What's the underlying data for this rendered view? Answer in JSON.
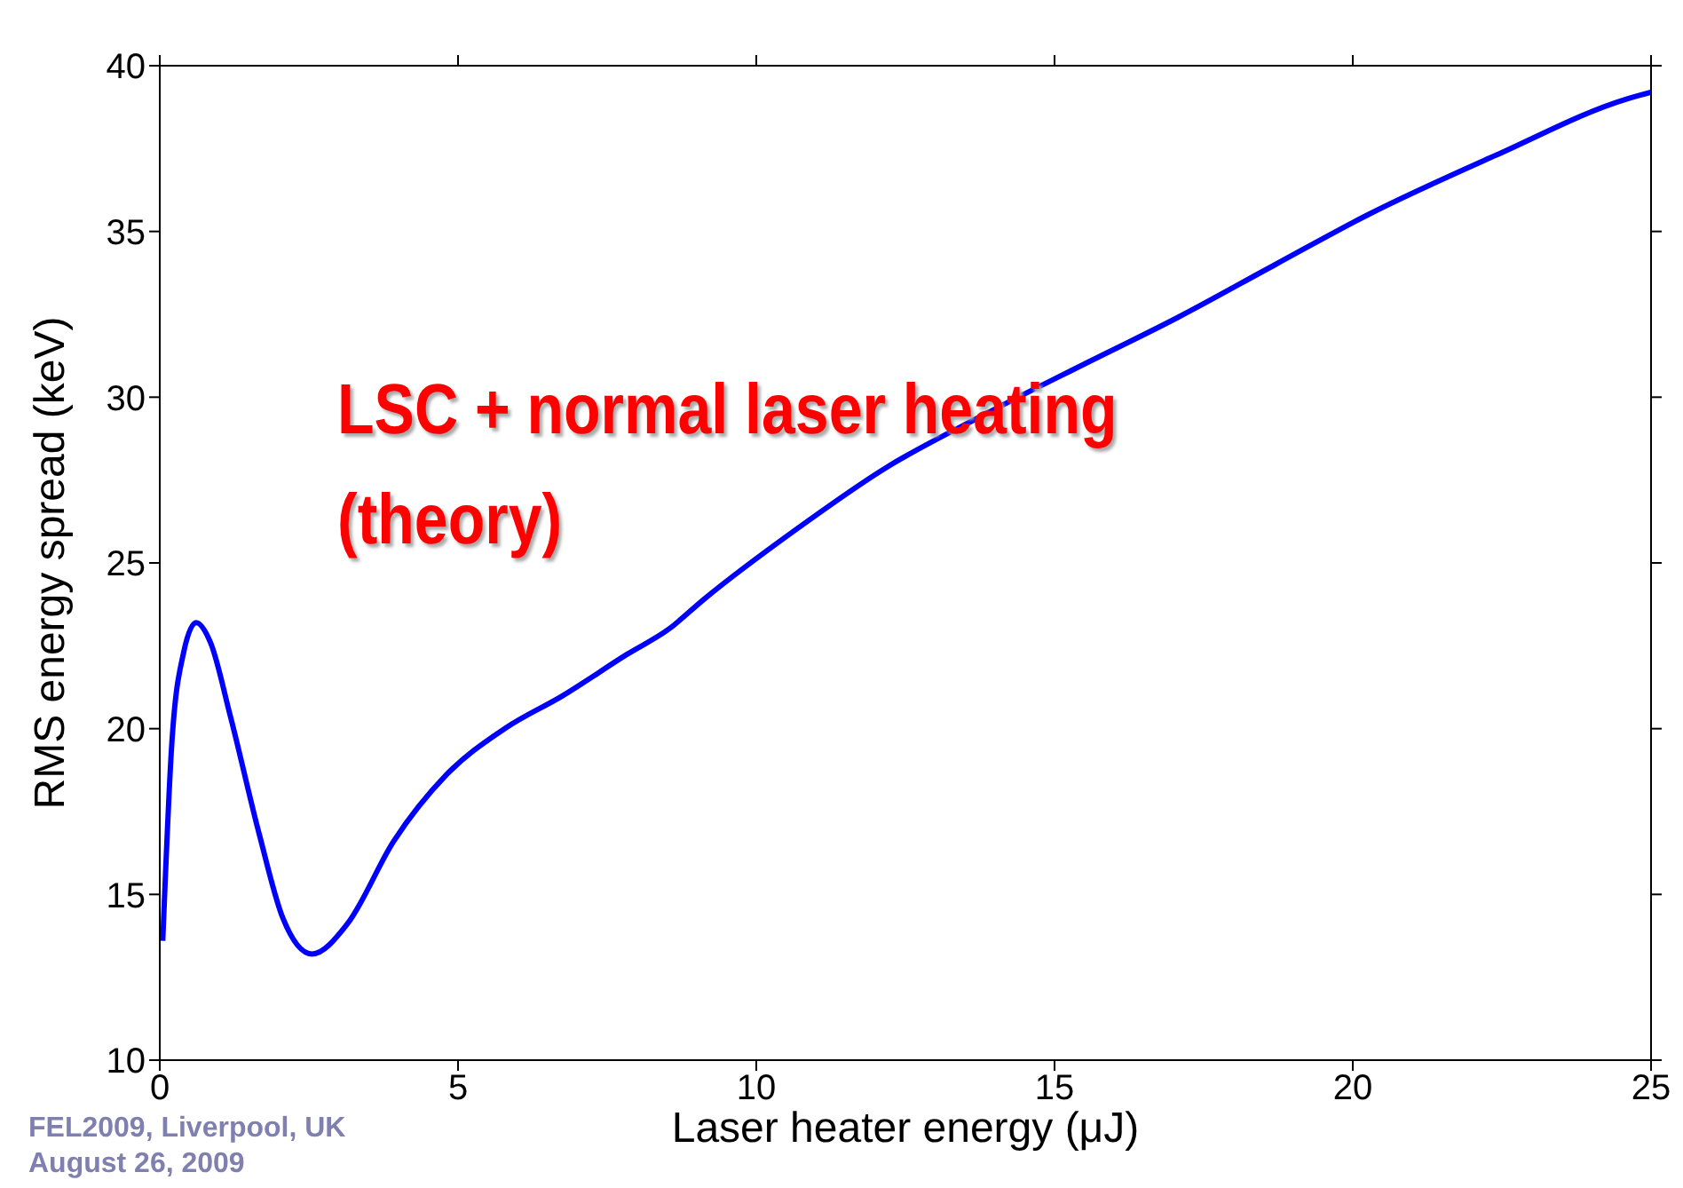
{
  "chart_data": {
    "type": "line",
    "xlabel": "Laser heater energy (μJ)",
    "ylabel": "RMS energy spread (keV)",
    "xlim": [
      0,
      25
    ],
    "xticks": [
      0,
      5,
      10,
      15,
      20,
      25
    ],
    "ylim": [
      10,
      40
    ],
    "yticks": [
      10,
      15,
      20,
      25,
      30,
      35,
      40
    ],
    "annotations": [
      "LSC + normal laser heating",
      "(theory)",
      "FEL2009, Liverpool, UK",
      "August 26, 2009"
    ],
    "series": [
      {
        "color": "#0000ff",
        "x": [
          0.05,
          0.2,
          0.4,
          0.61,
          0.85,
          1.18,
          1.67,
          2.06,
          2.55,
          3.14,
          3.92,
          4.8,
          5.78,
          6.76,
          7.84,
          8.53,
          9.12,
          10.66,
          12.2,
          13.85,
          15.5,
          17.06,
          18.7,
          20.25,
          22.4,
          24.6,
          25
        ],
        "values": [
          13.6,
          19.5,
          22.3,
          23.2,
          22.6,
          20.4,
          16.8,
          14.3,
          13.2,
          14.1,
          16.6,
          18.6,
          20.0,
          21.0,
          22.25,
          23.0,
          23.9,
          26.0,
          27.9,
          29.5,
          31.0,
          32.4,
          34.0,
          35.5,
          37.3,
          39.0,
          39.2
        ]
      }
    ]
  }
}
